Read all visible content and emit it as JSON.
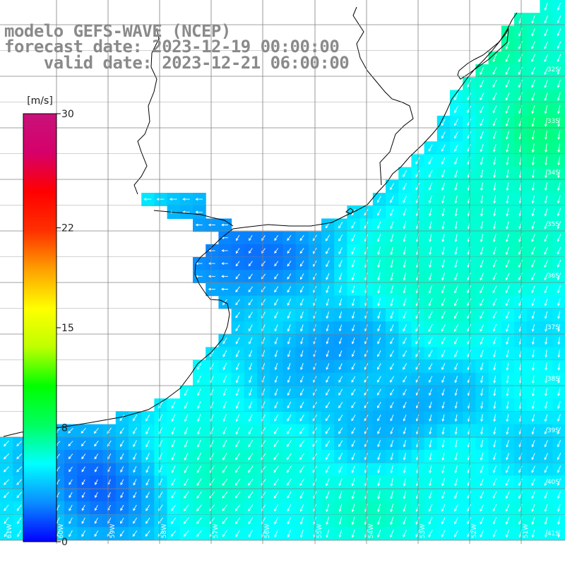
{
  "title": {
    "model": "modelo GEFS-WAVE (NCEP)",
    "forecast": "forecast date: 2023-12-19 00:00:00",
    "valid": "    valid date: 2023-12-21 06:00:00"
  },
  "colorbar": {
    "unit": "[m/s]",
    "min": 0,
    "max": 30,
    "ticks": [
      {
        "value": 30,
        "label": "30"
      },
      {
        "value": 22,
        "label": "22"
      },
      {
        "value": 15,
        "label": "15"
      },
      {
        "value": 8,
        "label": "8"
      },
      {
        "value": 0,
        "label": "0"
      }
    ],
    "colors": [
      "#0000ff",
      "#0a8dff",
      "#00ffff",
      "#00ff60",
      "#00ff00",
      "#bfff00",
      "#ffff00",
      "#ffa000",
      "#ff3000",
      "#ff0000",
      "#d6006a",
      "#c8127a"
    ]
  },
  "lat_labels": [
    "32S",
    "33S",
    "34S",
    "35S",
    "36S",
    "37S",
    "38S",
    "39S",
    "40S",
    "41S"
  ],
  "lon_labels": [
    "61W",
    "60W",
    "59W",
    "58W",
    "57W",
    "56W",
    "55W",
    "54W",
    "53W",
    "52W",
    "51W"
  ],
  "colors": {
    "ocean_base": "#1ec8f5",
    "land": "#ffffff",
    "coast": "#000000",
    "grid": "#808080",
    "arrow": "#ffffff"
  }
}
